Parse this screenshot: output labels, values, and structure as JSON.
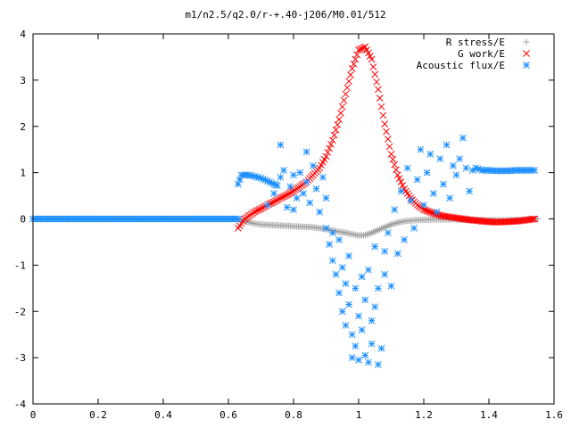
{
  "chart_data": {
    "type": "scatter",
    "title": "m1/n2.5/q2.0/r-+.40-j206/M0.01/512",
    "xlabel": "",
    "ylabel": "",
    "xlim": [
      0,
      1.6
    ],
    "ylim": [
      -4,
      4
    ],
    "xticks": [
      "0",
      "0.2",
      "0.4",
      "0.6",
      "0.8",
      "1",
      "1.2",
      "1.4",
      "1.6"
    ],
    "yticks": [
      "4",
      "3",
      "2",
      "1",
      "0",
      "-1",
      "-2",
      "-3",
      "-4"
    ],
    "grid": false,
    "legend_position": "top-right",
    "series": [
      {
        "name": "R stress/E",
        "marker": "plus",
        "color": "#a0a0a0",
        "points": [
          [
            0.64,
            0.0
          ],
          [
            0.66,
            -0.07
          ],
          [
            0.68,
            -0.1
          ],
          [
            0.7,
            -0.12
          ],
          [
            0.72,
            -0.13
          ],
          [
            0.75,
            -0.14
          ],
          [
            0.78,
            -0.15
          ],
          [
            0.8,
            -0.16
          ],
          [
            0.83,
            -0.17
          ],
          [
            0.86,
            -0.18
          ],
          [
            0.88,
            -0.2
          ],
          [
            0.9,
            -0.22
          ],
          [
            0.92,
            -0.25
          ],
          [
            0.94,
            -0.28
          ],
          [
            0.96,
            -0.3
          ],
          [
            0.98,
            -0.33
          ],
          [
            1.0,
            -0.36
          ],
          [
            1.02,
            -0.35
          ],
          [
            1.04,
            -0.3
          ],
          [
            1.06,
            -0.24
          ],
          [
            1.08,
            -0.18
          ],
          [
            1.1,
            -0.12
          ],
          [
            1.12,
            -0.08
          ],
          [
            1.14,
            -0.05
          ],
          [
            1.17,
            -0.03
          ],
          [
            1.2,
            -0.02
          ],
          [
            1.23,
            -0.01
          ],
          [
            1.27,
            -0.01
          ],
          [
            1.3,
            -0.01
          ],
          [
            1.33,
            -0.02
          ],
          [
            1.36,
            -0.02
          ],
          [
            1.4,
            -0.03
          ],
          [
            1.44,
            -0.03
          ],
          [
            1.48,
            -0.02
          ],
          [
            1.52,
            -0.01
          ],
          [
            1.55,
            0.0
          ]
        ]
      },
      {
        "name": "G work/E",
        "marker": "cross",
        "color": "#ff0000",
        "points": [
          [
            0.63,
            -0.2
          ],
          [
            0.64,
            -0.1
          ],
          [
            0.65,
            0.0
          ],
          [
            0.66,
            0.05
          ],
          [
            0.68,
            0.15
          ],
          [
            0.7,
            0.22
          ],
          [
            0.72,
            0.3
          ],
          [
            0.74,
            0.37
          ],
          [
            0.76,
            0.45
          ],
          [
            0.78,
            0.52
          ],
          [
            0.8,
            0.6
          ],
          [
            0.82,
            0.7
          ],
          [
            0.84,
            0.8
          ],
          [
            0.86,
            0.95
          ],
          [
            0.88,
            1.1
          ],
          [
            0.9,
            1.35
          ],
          [
            0.92,
            1.7
          ],
          [
            0.94,
            2.15
          ],
          [
            0.96,
            2.7
          ],
          [
            0.98,
            3.25
          ],
          [
            1.0,
            3.65
          ],
          [
            1.02,
            3.72
          ],
          [
            1.04,
            3.45
          ],
          [
            1.06,
            2.8
          ],
          [
            1.08,
            2.05
          ],
          [
            1.1,
            1.4
          ],
          [
            1.12,
            0.95
          ],
          [
            1.14,
            0.65
          ],
          [
            1.16,
            0.45
          ],
          [
            1.18,
            0.3
          ],
          [
            1.2,
            0.2
          ],
          [
            1.23,
            0.12
          ],
          [
            1.26,
            0.06
          ],
          [
            1.3,
            0.02
          ],
          [
            1.34,
            -0.02
          ],
          [
            1.38,
            -0.05
          ],
          [
            1.42,
            -0.07
          ],
          [
            1.46,
            -0.06
          ],
          [
            1.5,
            -0.04
          ],
          [
            1.54,
            0.0
          ]
        ]
      },
      {
        "name": "Acoustic flux/E",
        "marker": "star",
        "color": "#1e90ff",
        "points": [
          [
            0.0,
            0.0
          ],
          [
            0.05,
            0.0
          ],
          [
            0.1,
            0.0
          ],
          [
            0.15,
            0.0
          ],
          [
            0.2,
            0.0
          ],
          [
            0.25,
            0.0
          ],
          [
            0.3,
            0.0
          ],
          [
            0.35,
            0.0
          ],
          [
            0.4,
            0.0
          ],
          [
            0.45,
            0.0
          ],
          [
            0.5,
            0.0
          ],
          [
            0.55,
            0.0
          ],
          [
            0.6,
            0.0
          ],
          [
            0.63,
            0.0
          ],
          [
            0.63,
            0.75
          ],
          [
            0.64,
            0.95
          ],
          [
            0.66,
            0.95
          ],
          [
            0.68,
            0.92
          ],
          [
            0.7,
            0.88
          ],
          [
            0.72,
            0.82
          ],
          [
            0.74,
            0.75
          ],
          [
            0.75,
            0.72
          ],
          [
            0.72,
            0.3
          ],
          [
            0.74,
            0.55
          ],
          [
            0.76,
            0.9
          ],
          [
            0.77,
            1.05
          ],
          [
            0.78,
            0.25
          ],
          [
            0.79,
            0.7
          ],
          [
            0.8,
            0.95
          ],
          [
            0.8,
            0.2
          ],
          [
            0.81,
            0.45
          ],
          [
            0.82,
            1.0
          ],
          [
            0.83,
            0.55
          ],
          [
            0.84,
            0.8
          ],
          [
            0.85,
            0.35
          ],
          [
            0.86,
            1.15
          ],
          [
            0.87,
            0.65
          ],
          [
            0.88,
            0.15
          ],
          [
            0.89,
            0.9
          ],
          [
            0.9,
            0.45
          ],
          [
            0.76,
            1.6
          ],
          [
            0.84,
            1.45
          ],
          [
            0.9,
            -0.2
          ],
          [
            0.91,
            -0.55
          ],
          [
            0.92,
            -0.3
          ],
          [
            0.92,
            -0.9
          ],
          [
            0.93,
            -1.2
          ],
          [
            0.94,
            -0.45
          ],
          [
            0.94,
            -1.6
          ],
          [
            0.95,
            -1.05
          ],
          [
            0.95,
            -2.0
          ],
          [
            0.96,
            -1.4
          ],
          [
            0.96,
            -2.3
          ],
          [
            0.97,
            -0.8
          ],
          [
            0.97,
            -1.85
          ],
          [
            0.98,
            -2.5
          ],
          [
            0.98,
            -3.0
          ],
          [
            0.99,
            -1.5
          ],
          [
            0.99,
            -2.75
          ],
          [
            1.0,
            -2.1
          ],
          [
            1.0,
            -3.05
          ],
          [
            1.01,
            -1.25
          ],
          [
            1.01,
            -2.4
          ],
          [
            1.02,
            -1.75
          ],
          [
            1.02,
            -2.95
          ],
          [
            1.03,
            -3.1
          ],
          [
            1.03,
            -1.1
          ],
          [
            1.04,
            -2.2
          ],
          [
            1.04,
            -2.7
          ],
          [
            1.05,
            -0.6
          ],
          [
            1.05,
            -1.9
          ],
          [
            1.06,
            -1.5
          ],
          [
            1.06,
            -3.15
          ],
          [
            1.07,
            -2.8
          ],
          [
            1.08,
            -0.7
          ],
          [
            1.08,
            -1.2
          ],
          [
            1.09,
            -0.3
          ],
          [
            1.1,
            -1.45
          ],
          [
            1.11,
            0.2
          ],
          [
            1.12,
            -0.75
          ],
          [
            1.13,
            0.6
          ],
          [
            1.14,
            -0.45
          ],
          [
            1.15,
            1.1
          ],
          [
            1.16,
            0.4
          ],
          [
            1.17,
            -0.2
          ],
          [
            1.18,
            0.85
          ],
          [
            1.19,
            1.5
          ],
          [
            1.2,
            0.3
          ],
          [
            1.21,
            1.0
          ],
          [
            1.22,
            1.4
          ],
          [
            1.23,
            0.55
          ],
          [
            1.24,
            0.15
          ],
          [
            1.25,
            1.3
          ],
          [
            1.26,
            0.75
          ],
          [
            1.27,
            1.6
          ],
          [
            1.28,
            0.45
          ],
          [
            1.29,
            1.15
          ],
          [
            1.3,
            0.95
          ],
          [
            1.31,
            1.3
          ],
          [
            1.32,
            1.75
          ],
          [
            1.33,
            1.1
          ],
          [
            1.34,
            0.6
          ],
          [
            1.35,
            1.05
          ],
          [
            1.36,
            1.1
          ],
          [
            1.38,
            1.05
          ],
          [
            1.4,
            1.05
          ],
          [
            1.42,
            1.04
          ],
          [
            1.44,
            1.04
          ],
          [
            1.46,
            1.04
          ],
          [
            1.48,
            1.05
          ],
          [
            1.5,
            1.05
          ],
          [
            1.52,
            1.05
          ],
          [
            1.54,
            1.05
          ]
        ]
      }
    ]
  }
}
